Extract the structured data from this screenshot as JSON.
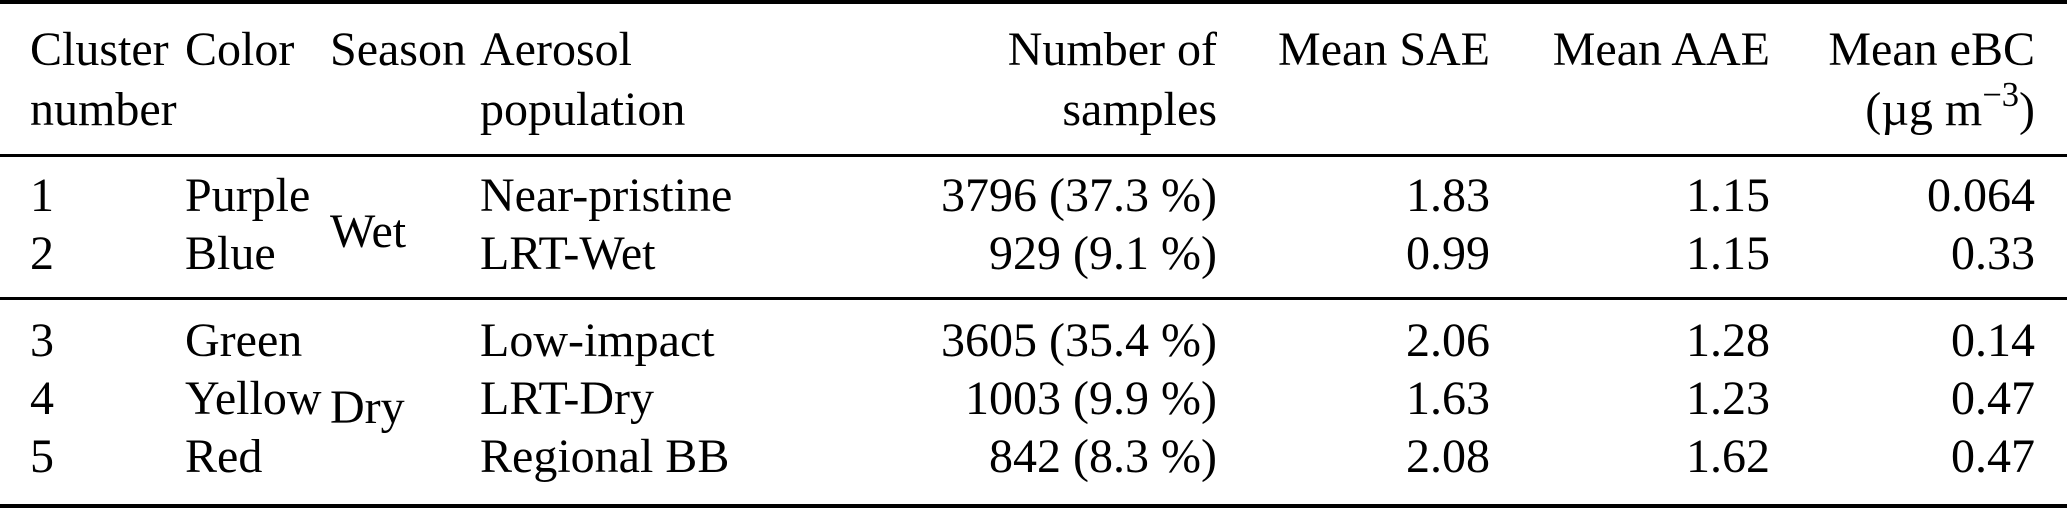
{
  "table": {
    "headers": {
      "cluster_l1": "Cluster",
      "cluster_l2": "number",
      "color": "Color",
      "season": "Season",
      "population_l1": "Aerosol",
      "population_l2": "population",
      "samples_l1": "Number of",
      "samples_l2": "samples",
      "sae": "Mean SAE",
      "aae": "Mean AAE",
      "ebc_l1": "Mean eBC",
      "ebc_unit_prefix": "(µg m",
      "ebc_unit_sup": "−3",
      "ebc_unit_suffix": ")"
    },
    "groups": [
      {
        "season": "Wet",
        "rows": [
          {
            "cluster": "1",
            "color": "Purple",
            "population": "Near-pristine",
            "samples": "3796 (37.3 %)",
            "sae": "1.83",
            "aae": "1.15",
            "ebc": "0.064"
          },
          {
            "cluster": "2",
            "color": "Blue",
            "population": "LRT-Wet",
            "samples": "929 (9.1 %)",
            "sae": "0.99",
            "aae": "1.15",
            "ebc": "0.33"
          }
        ]
      },
      {
        "season": "Dry",
        "rows": [
          {
            "cluster": "3",
            "color": "Green",
            "population": "Low-impact",
            "samples": "3605 (35.4 %)",
            "sae": "2.06",
            "aae": "1.28",
            "ebc": "0.14"
          },
          {
            "cluster": "4",
            "color": "Yellow",
            "population": "LRT-Dry",
            "samples": "1003 (9.9 %)",
            "sae": "1.63",
            "aae": "1.23",
            "ebc": "0.47"
          },
          {
            "cluster": "5",
            "color": "Red",
            "population": "Regional BB",
            "samples": "842 (8.3 %)",
            "sae": "2.08",
            "aae": "1.62",
            "ebc": "0.47"
          }
        ]
      }
    ],
    "colors": {
      "text": "#000000",
      "background": "#ffffff",
      "rule": "#000000"
    }
  },
  "chart_data": {
    "type": "table",
    "columns": [
      "Cluster number",
      "Color",
      "Season",
      "Aerosol population",
      "Number of samples",
      "Mean SAE",
      "Mean AAE",
      "Mean eBC (µg m−3)"
    ],
    "rows": [
      [
        "1",
        "Purple",
        "Wet",
        "Near-pristine",
        "3796 (37.3 %)",
        "1.83",
        "1.15",
        "0.064"
      ],
      [
        "2",
        "Blue",
        "Wet",
        "LRT-Wet",
        "929 (9.1 %)",
        "0.99",
        "1.15",
        "0.33"
      ],
      [
        "3",
        "Green",
        "Dry",
        "Low-impact",
        "3605 (35.4 %)",
        "2.06",
        "1.28",
        "0.14"
      ],
      [
        "4",
        "Yellow",
        "Dry",
        "LRT-Dry",
        "1003 (9.9 %)",
        "1.63",
        "1.23",
        "0.47"
      ],
      [
        "5",
        "Red",
        "Dry",
        "Regional BB",
        "842 (8.3 %)",
        "2.08",
        "1.62",
        "0.47"
      ]
    ],
    "notes": "Season column is merged per group: Wet spans clusters 1–2, Dry spans clusters 3–5"
  }
}
